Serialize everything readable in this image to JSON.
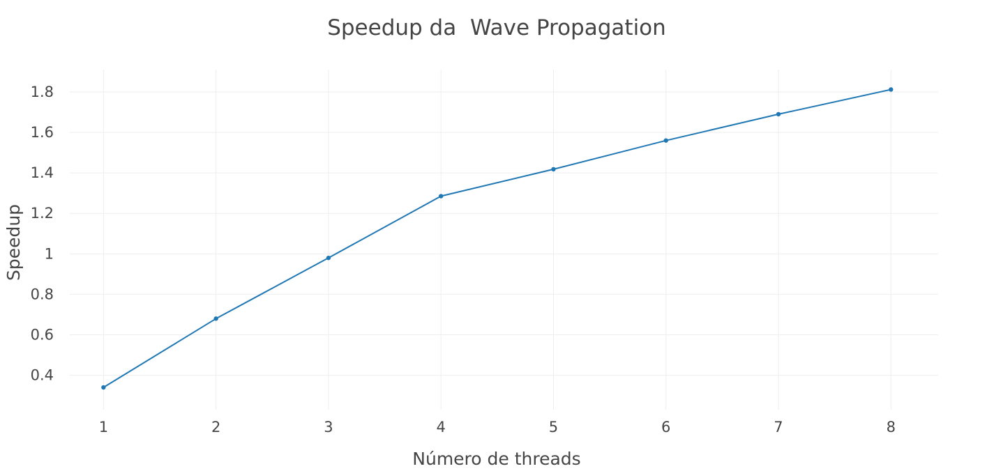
{
  "chart_data": {
    "type": "line",
    "title": "Speedup da  Wave Propagation",
    "xlabel": "Número de threads",
    "ylabel": "Speedup",
    "x": [
      1,
      2,
      3,
      4,
      5,
      6,
      7,
      8
    ],
    "xticks": [
      "1",
      "2",
      "3",
      "4",
      "5",
      "6",
      "7",
      "8"
    ],
    "xlim": [
      0.7,
      8.42
    ],
    "yticks": [
      "0.4",
      "0.6",
      "0.8",
      "1",
      "1.2",
      "1.4",
      "1.6",
      "1.8"
    ],
    "ylim": [
      0.23,
      1.91
    ],
    "grid": true,
    "legend": "none",
    "series": [
      {
        "values": [
          0.34,
          0.68,
          0.98,
          1.285,
          1.418,
          1.56,
          1.69,
          1.812
        ],
        "color": "#1f77b4",
        "markers": true
      }
    ]
  }
}
